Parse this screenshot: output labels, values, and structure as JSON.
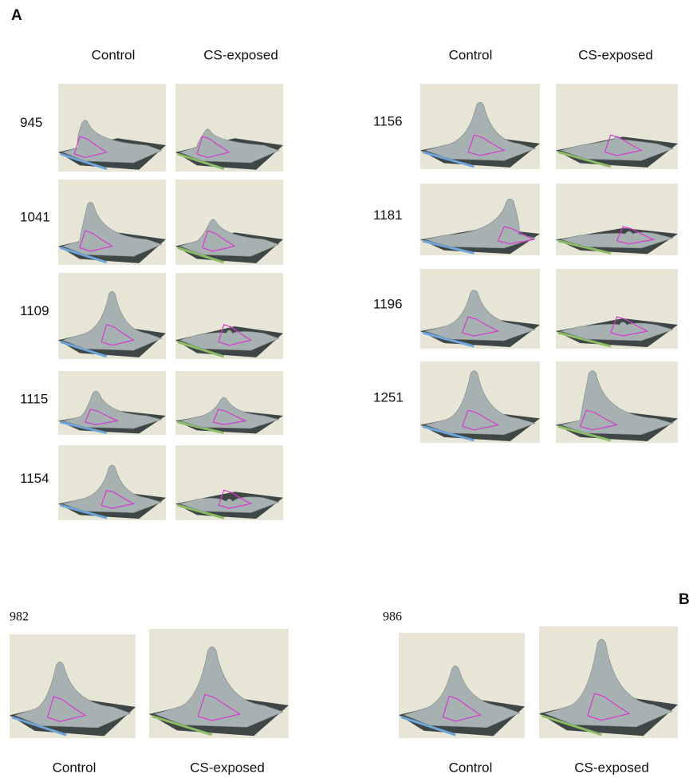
{
  "panel_a": {
    "label": "A",
    "left": {
      "headers": [
        "Control",
        "CS-exposed"
      ],
      "spots": [
        "945",
        "1041",
        "1109",
        "1115",
        "1154"
      ]
    },
    "right": {
      "headers": [
        "Control",
        "CS-exposed"
      ],
      "spots": [
        "1156",
        "1181",
        "1196",
        "1251"
      ]
    }
  },
  "panel_b": {
    "label": "B",
    "groups": [
      {
        "spot": "982",
        "headers": [
          "Control",
          "CS-exposed"
        ]
      },
      {
        "spot": "986",
        "headers": [
          "Control",
          "CS-exposed"
        ]
      }
    ]
  }
}
